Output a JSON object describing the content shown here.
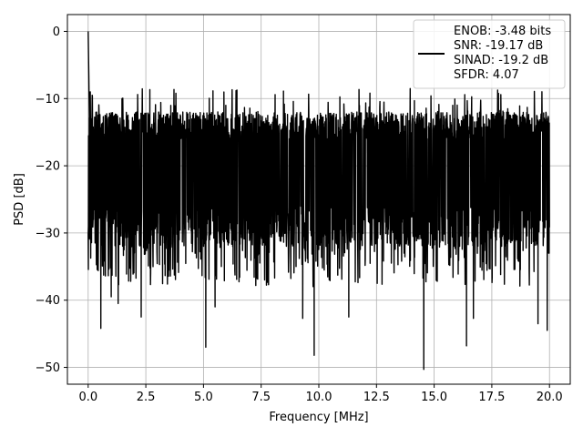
{
  "chart_data": {
    "type": "line",
    "title": "",
    "xlabel": "Frequency [MHz]",
    "ylabel": "PSD [dB]",
    "xlim": [
      -0.9,
      20.9
    ],
    "ylim": [
      -52.5,
      2.5
    ],
    "xticks": [
      0.0,
      2.5,
      5.0,
      7.5,
      10.0,
      12.5,
      15.0,
      17.5,
      20.0
    ],
    "xtick_labels": [
      "0.0",
      "2.5",
      "5.0",
      "7.5",
      "10.0",
      "12.5",
      "15.0",
      "17.5",
      "20.0"
    ],
    "yticks": [
      0,
      -10,
      -20,
      -30,
      -40,
      -50
    ],
    "ytick_labels": [
      "0",
      "−10",
      "−20",
      "−30",
      "−40",
      "−50"
    ],
    "grid": true,
    "legend_position": "top-right",
    "legend_lines": [
      "ENOB: -3.48 bits",
      "SNR: -19.17 dB",
      "SINAD: -19.2 dB",
      "SFDR: 4.07"
    ],
    "series": [
      {
        "color": "#000000",
        "description_of_shape": "dense noise floor",
        "x_range": [
          0,
          20
        ],
        "peak": {
          "x": 0.0,
          "y": 0.0
        },
        "notable_minima": [
          {
            "x": 0.55,
            "y": -44.2
          },
          {
            "x": 1.0,
            "y": -39.5
          },
          {
            "x": 1.3,
            "y": -40.5
          },
          {
            "x": 2.3,
            "y": -42.5
          },
          {
            "x": 5.1,
            "y": -47.0
          },
          {
            "x": 5.5,
            "y": -41.0
          },
          {
            "x": 9.3,
            "y": -42.7
          },
          {
            "x": 9.8,
            "y": -48.2
          },
          {
            "x": 11.3,
            "y": -42.5
          },
          {
            "x": 14.55,
            "y": -50.3
          },
          {
            "x": 16.4,
            "y": -46.8
          },
          {
            "x": 16.7,
            "y": -42.7
          },
          {
            "x": 19.5,
            "y": -43.5
          },
          {
            "x": 19.9,
            "y": -44.5
          }
        ],
        "typical_upper": -14.0,
        "typical_lower": -30.0,
        "max_excursion": -8.5
      }
    ]
  }
}
